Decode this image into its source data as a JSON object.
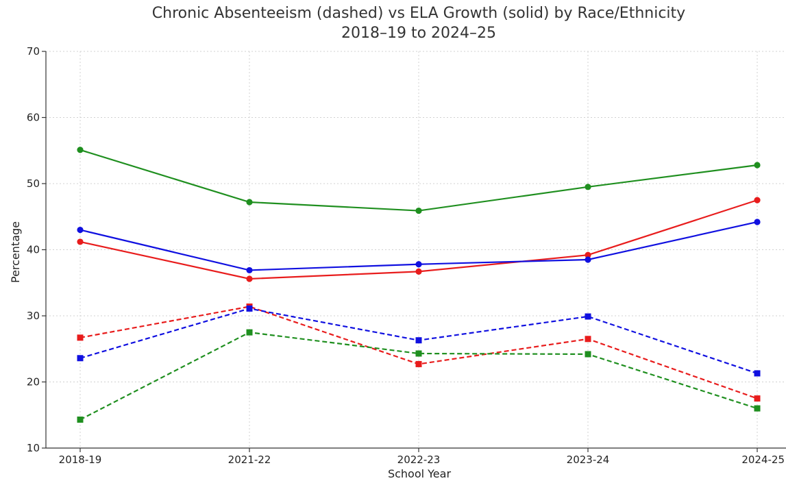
{
  "chart_data": {
    "type": "line",
    "title": "Chronic Absenteeism (dashed) vs ELA Growth (solid) by Race/Ethnicity",
    "subtitle": "2018–19 to 2024–25",
    "xlabel": "School Year",
    "ylabel": "Percentage",
    "categories": [
      "2018-19",
      "2021-22",
      "2022-23",
      "2023-24",
      "2024-25"
    ],
    "ylim": [
      10,
      70
    ],
    "yticks": [
      10,
      20,
      30,
      40,
      50,
      60,
      70
    ],
    "grid": true,
    "legend": "none",
    "series": [
      {
        "metric": "ELA Growth",
        "style": "solid",
        "marker": "circle",
        "color": "#1f8f1f",
        "values": [
          55.1,
          47.2,
          45.9,
          49.5,
          52.8
        ]
      },
      {
        "metric": "ELA Growth",
        "style": "solid",
        "marker": "circle",
        "color": "#e81c1c",
        "values": [
          41.2,
          35.6,
          36.7,
          39.2,
          47.5
        ]
      },
      {
        "metric": "ELA Growth",
        "style": "solid",
        "marker": "circle",
        "color": "#1010e0",
        "values": [
          43.0,
          36.9,
          37.8,
          38.5,
          44.2
        ]
      },
      {
        "metric": "Chronic Absenteeism",
        "style": "dashed",
        "marker": "square",
        "color": "#e81c1c",
        "values": [
          26.7,
          31.4,
          22.7,
          26.5,
          17.5
        ]
      },
      {
        "metric": "Chronic Absenteeism",
        "style": "dashed",
        "marker": "square",
        "color": "#1010e0",
        "values": [
          23.6,
          31.1,
          26.3,
          29.9,
          21.3
        ]
      },
      {
        "metric": "Chronic Absenteeism",
        "style": "dashed",
        "marker": "square",
        "color": "#1f8f1f",
        "values": [
          14.3,
          27.5,
          24.3,
          24.2,
          16.0
        ]
      }
    ]
  }
}
